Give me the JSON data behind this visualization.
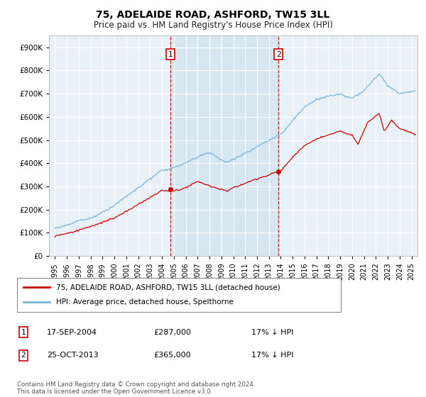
{
  "title": "75, ADELAIDE ROAD, ASHFORD, TW15 3LL",
  "subtitle": "Price paid vs. HM Land Registry's House Price Index (HPI)",
  "legend_line1": "75, ADELAIDE ROAD, ASHFORD, TW15 3LL (detached house)",
  "legend_line2": "HPI: Average price, detached house, Spelthorne",
  "annotation1": {
    "label": "1",
    "date": "17-SEP-2004",
    "price": "£287,000",
    "note": "17% ↓ HPI",
    "x_year": 2004.71
  },
  "annotation2": {
    "label": "2",
    "date": "25-OCT-2013",
    "price": "£365,000",
    "note": "17% ↓ HPI",
    "x_year": 2013.81
  },
  "point1_price": 287000,
  "point2_price": 365000,
  "hpi_line_color": "#7ab4d8",
  "price_line_color": "#cc0000",
  "dashed_line_color": "#cc0000",
  "shade_color": "#d0e4f0",
  "background_color": "#ffffff",
  "plot_bg_color": "#e8f0f8",
  "footnote": "Contains HM Land Registry data © Crown copyright and database right 2024.\nThis data is licensed under the Open Government Licence v3.0.",
  "ylim": [
    0,
    950000
  ],
  "yticks": [
    0,
    100000,
    200000,
    300000,
    400000,
    500000,
    600000,
    700000,
    800000,
    900000
  ],
  "xlim_start": 1994.5,
  "xlim_end": 2025.5
}
